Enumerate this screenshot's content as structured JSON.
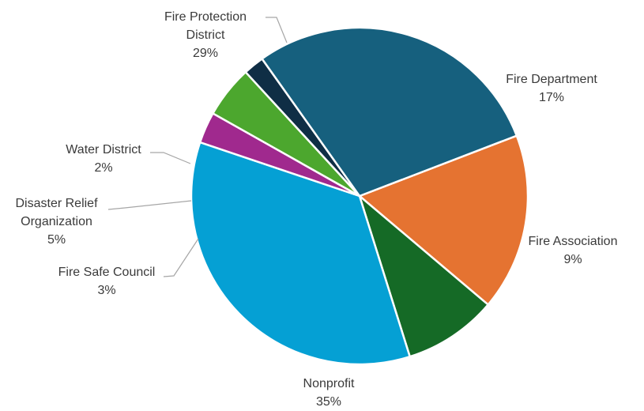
{
  "chart_data": {
    "type": "pie",
    "title": "",
    "legend": "none",
    "slices": [
      {
        "name": "Fire Department",
        "value": 17,
        "label": "17%",
        "color": "#E57331"
      },
      {
        "name": "Fire Association",
        "value": 9,
        "label": "9%",
        "color": "#156A26"
      },
      {
        "name": "Nonprofit",
        "value": 35,
        "label": "35%",
        "color": "#05A0D4"
      },
      {
        "name": "Fire Safe Council",
        "value": 3,
        "label": "3%",
        "color": "#A0298E"
      },
      {
        "name": "Disaster Relief Organization",
        "value": 5,
        "label": "5%",
        "color": "#4CA72E",
        "name_lines": [
          "Disaster Relief",
          "Organization"
        ]
      },
      {
        "name": "Water District",
        "value": 2,
        "label": "2%",
        "color": "#0F2E45"
      },
      {
        "name": "Fire Protection District",
        "value": 29,
        "label": "29%",
        "color": "#16607E",
        "name_lines": [
          "Fire Protection",
          "District"
        ]
      }
    ]
  }
}
